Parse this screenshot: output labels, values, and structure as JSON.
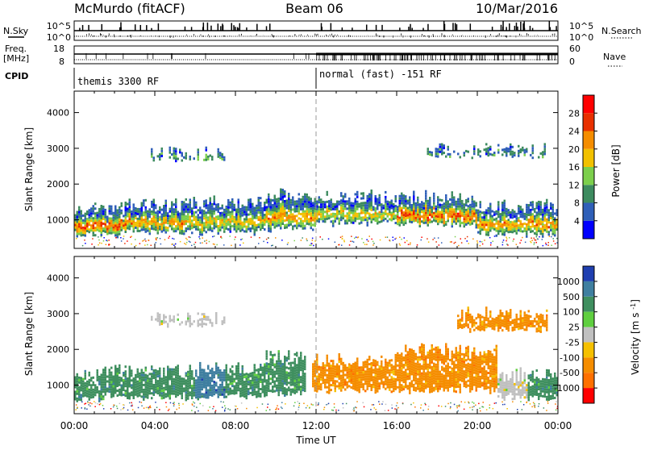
{
  "header": {
    "station": "McMurdo (fitACF)",
    "beam": "Beam 06",
    "date": "10/Mar/2016"
  },
  "aux_panels": {
    "nsky_label": "N.Sky",
    "nsearch_label": "N.Search",
    "noise_ticks_left": [
      "10^5",
      "10^0"
    ],
    "noise_ticks_right": [
      "10^5",
      "10^0"
    ],
    "freq_label": "Freq.",
    "freq_unit": "[MHz]",
    "freq_ticks": [
      "18",
      "8"
    ],
    "nave_label": "Nave",
    "nave_ticks": [
      "60",
      "0"
    ],
    "cpid_label": "CPID",
    "cpid_segments": [
      {
        "text": "themis 3300 RF",
        "start_hour": 0
      },
      {
        "text": "normal (fast) -151 RF",
        "start_hour": 12
      }
    ]
  },
  "x_axis": {
    "title": "Time UT",
    "tick_labels": [
      "00:00",
      "04:00",
      "08:00",
      "12:00",
      "16:00",
      "20:00",
      "00:00"
    ],
    "range_hours": [
      0,
      24
    ]
  },
  "chart_data": [
    {
      "type": "heatmap",
      "name": "power-rti",
      "ylabel": "Slant Range [km]",
      "y_ticks": [
        "1000",
        "2000",
        "3000",
        "4000"
      ],
      "ylim": [
        200,
        4600
      ],
      "colorbar_label": "Power [dB]",
      "colorbar_ticks": [
        "4",
        "8",
        "12",
        "16",
        "20",
        "24",
        "28"
      ],
      "colorbar_colors": [
        "#0000ff",
        "#2f5fb8",
        "#3d8b5f",
        "#7ccf4c",
        "#f2c100",
        "#f58d00",
        "#e83000",
        "#ff0000"
      ],
      "regions": [
        {
          "t0": 0.0,
          "t1": 2.5,
          "r0": 550,
          "r1": 1500,
          "level": 28
        },
        {
          "t0": 2.5,
          "t1": 5.5,
          "r0": 600,
          "r1": 1600,
          "level": 24
        },
        {
          "t0": 5.5,
          "t1": 9.5,
          "r0": 600,
          "r1": 1700,
          "level": 20
        },
        {
          "t0": 9.5,
          "t1": 12.0,
          "r0": 700,
          "r1": 1900,
          "level": 24
        },
        {
          "t0": 12.0,
          "t1": 16.0,
          "r0": 850,
          "r1": 1850,
          "level": 20
        },
        {
          "t0": 16.0,
          "t1": 20.0,
          "r0": 800,
          "r1": 1850,
          "level": 28
        },
        {
          "t0": 20.0,
          "t1": 24.0,
          "r0": 550,
          "r1": 1600,
          "level": 24
        },
        {
          "t0": 3.8,
          "t1": 7.5,
          "r0": 2650,
          "r1": 3050,
          "level": 16
        },
        {
          "t0": 17.5,
          "t1": 23.5,
          "r0": 2750,
          "r1": 3150,
          "level": 12
        }
      ]
    },
    {
      "type": "heatmap",
      "name": "velocity-rti",
      "ylabel": "Slant Range [km]",
      "y_ticks": [
        "1000",
        "2000",
        "3000",
        "4000"
      ],
      "ylim": [
        200,
        4600
      ],
      "colorbar_label": "Velocity [m s^-1]",
      "colorbar_ticks": [
        "1000",
        "500",
        "100",
        "25",
        "-25",
        "-100",
        "-500",
        "-1000"
      ],
      "colorbar_colors": [
        "#1f3fb0",
        "#3f7fa0",
        "#3f8f5f",
        "#5fcf3f",
        "#c0c0c0",
        "#f5c000",
        "#f58d00",
        "#ff7000",
        "#ff0000"
      ],
      "regions": [
        {
          "t0": 0.0,
          "t1": 1.5,
          "r0": 550,
          "r1": 1500,
          "value": 100
        },
        {
          "t0": 1.5,
          "t1": 6.0,
          "r0": 600,
          "r1": 1600,
          "value": 300
        },
        {
          "t0": 6.0,
          "t1": 7.5,
          "r0": 600,
          "r1": 1700,
          "value": 700
        },
        {
          "t0": 7.5,
          "t1": 9.5,
          "r0": 650,
          "r1": 1700,
          "value": 300
        },
        {
          "t0": 9.5,
          "t1": 11.5,
          "r0": 700,
          "r1": 2000,
          "value": 300
        },
        {
          "t0": 11.8,
          "t1": 16.0,
          "r0": 800,
          "r1": 1900,
          "value": -300
        },
        {
          "t0": 16.0,
          "t1": 21.0,
          "r0": 800,
          "r1": 2200,
          "value": -300
        },
        {
          "t0": 21.0,
          "t1": 22.5,
          "r0": 600,
          "r1": 1500,
          "value": 0
        },
        {
          "t0": 22.5,
          "t1": 24.0,
          "r0": 550,
          "r1": 1500,
          "value": 100
        },
        {
          "t0": 3.8,
          "t1": 7.5,
          "r0": 2650,
          "r1": 3050,
          "value": 0
        },
        {
          "t0": 19.0,
          "t1": 23.5,
          "r0": 2500,
          "r1": 3200,
          "value": -300
        }
      ]
    }
  ]
}
